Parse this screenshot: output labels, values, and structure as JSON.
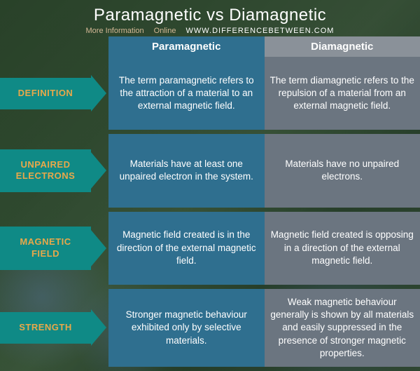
{
  "header": {
    "title": "Paramagnetic vs Diamagnetic",
    "more_info": "More Information",
    "online": "Online",
    "url": "WWW.DIFFERENCEBETWEEN.COM"
  },
  "columns": {
    "col1": "Paramagnetic",
    "col2": "Diamagnetic"
  },
  "colors": {
    "label_bg": "#0f8a86",
    "label_text": "#e8a84a",
    "col1_header_bg": "#2f6f8f",
    "col2_header_bg": "#8a9199",
    "col1_cell_bg": "#2f6f8f",
    "col2_cell_bg": "#6b7580",
    "title_color": "#ffffff",
    "cell_text": "#ffffff"
  },
  "rows": [
    {
      "label": "DEFINITION",
      "col1": "The term paramagnetic refers to the attraction of a material to an external magnetic field.",
      "col2": "The term diamagnetic refers to the repulsion of a material from an external magnetic field."
    },
    {
      "label": "UNPAIRED ELECTRONS",
      "col1": "Materials have at least one unpaired electron in the system.",
      "col2": "Materials have no unpaired electrons."
    },
    {
      "label": "MAGNETIC FIELD",
      "col1": "Magnetic field created is in the direction of the external magnetic field.",
      "col2": "Magnetic field created is opposing in a direction of the external magnetic field."
    },
    {
      "label": "STRENGTH",
      "col1": "Stronger magnetic behaviour exhibited only by selective materials.",
      "col2": "Weak magnetic behaviour generally is shown by all materials and easily suppressed in the presence of stronger magnetic properties."
    }
  ]
}
